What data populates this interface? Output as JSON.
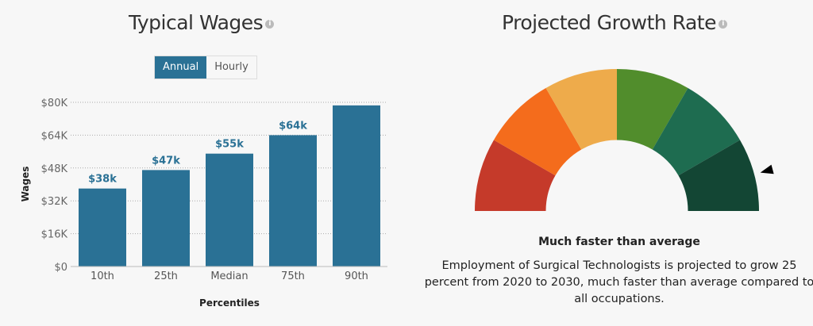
{
  "wages": {
    "title": "Typical Wages",
    "info_icon": "info-icon",
    "toggle": {
      "options": [
        "Annual",
        "Hourly"
      ],
      "selected": "Annual"
    }
  },
  "chart_data": {
    "type": "bar",
    "categories": [
      "10th",
      "25th",
      "Median",
      "75th",
      "90th"
    ],
    "values": [
      38,
      47,
      55,
      64,
      78.5
    ],
    "data_labels": [
      "$38k",
      "$47k",
      "$55k",
      "$64k",
      ""
    ],
    "xlabel": "Percentiles",
    "ylabel": "Wages",
    "ylim": [
      0,
      80
    ],
    "yticks": [
      "$0",
      "$16K",
      "$32K",
      "$48K",
      "$64K",
      "$80K"
    ],
    "grid": true,
    "bar_color": "#2a7195"
  },
  "growth": {
    "title": "Projected Growth Rate",
    "info_icon": "info-icon",
    "segments": [
      "#c53a2a",
      "#f46c1c",
      "#eeab4b",
      "#518d2c",
      "#1e6c50",
      "#134634"
    ],
    "selected_segment": 6,
    "rating": "Much faster than average",
    "description": "Employment of Surgical Technologists is projected to grow 25 percent from 2020 to 2030, much faster than average compared to all occupations."
  }
}
